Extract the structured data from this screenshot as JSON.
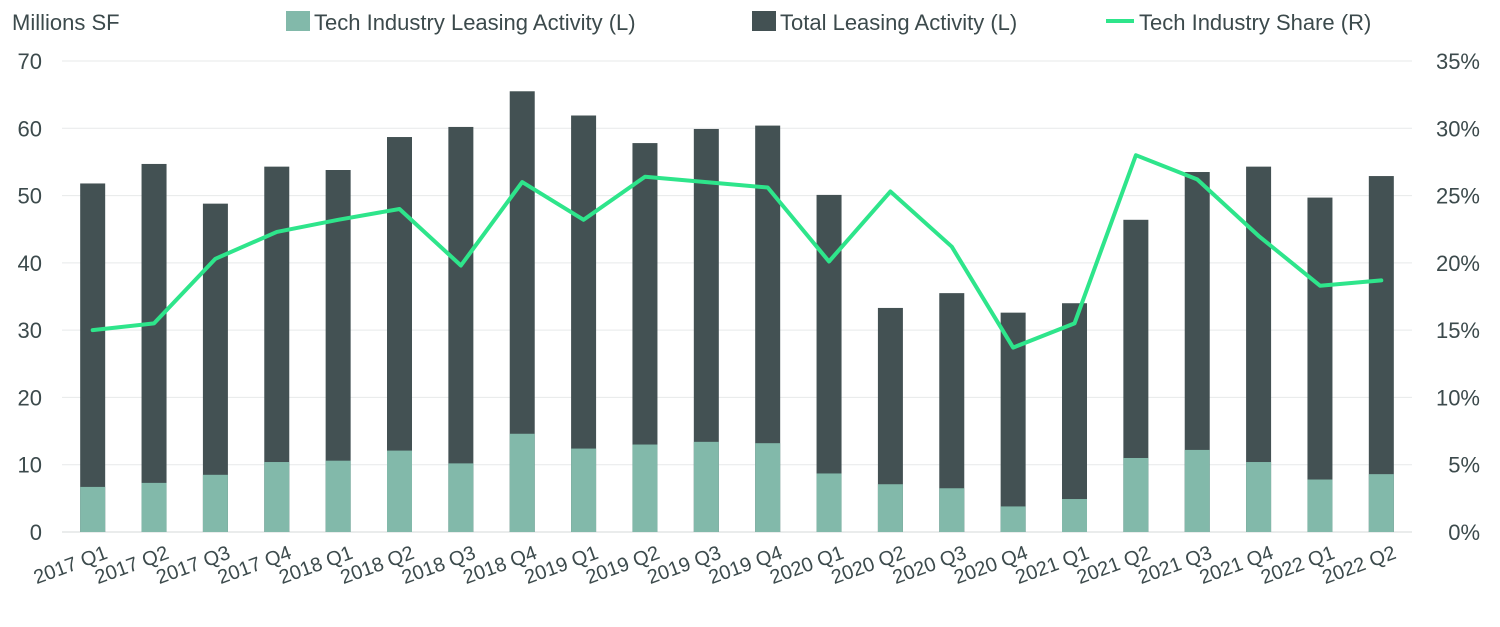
{
  "chart_data": {
    "type": "bar",
    "left_axis_title": "Millions SF",
    "categories": [
      "2017 Q1",
      "2017 Q2",
      "2017 Q3",
      "2017 Q4",
      "2018 Q1",
      "2018 Q2",
      "2018 Q3",
      "2018 Q4",
      "2019 Q1",
      "2019 Q2",
      "2019 Q3",
      "2019 Q4",
      "2020 Q1",
      "2020 Q2",
      "2020 Q3",
      "2020 Q4",
      "2021 Q1",
      "2021 Q2",
      "2021 Q3",
      "2021 Q4",
      "2022 Q1",
      "2022 Q2"
    ],
    "series": [
      {
        "name": "Tech Industry Leasing Activity (L)",
        "axis": "left",
        "kind": "bar",
        "color": "#82b9aa",
        "values": [
          6.7,
          7.3,
          8.5,
          10.4,
          10.6,
          12.1,
          10.2,
          14.6,
          12.4,
          13.0,
          13.4,
          13.2,
          8.7,
          7.1,
          6.5,
          3.8,
          4.9,
          11.0,
          12.2,
          10.4,
          7.8,
          8.6
        ]
      },
      {
        "name": "Total Leasing Activity (L)",
        "axis": "left",
        "kind": "bar",
        "color": "#435153",
        "values": [
          51.8,
          54.7,
          48.8,
          54.3,
          53.8,
          58.7,
          60.2,
          65.5,
          61.9,
          57.8,
          59.9,
          60.4,
          50.1,
          33.3,
          35.5,
          32.6,
          34.0,
          46.4,
          53.5,
          54.3,
          49.7,
          52.9
        ]
      },
      {
        "name": "Tech Industry Share (R)",
        "axis": "right",
        "kind": "line",
        "color": "#2ee58b",
        "values": [
          15.0,
          15.5,
          20.3,
          22.3,
          23.2,
          24.0,
          19.8,
          26.0,
          23.2,
          26.4,
          26.0,
          25.6,
          20.1,
          25.3,
          21.2,
          13.7,
          15.5,
          28.0,
          26.2,
          22.0,
          18.3,
          18.7
        ]
      }
    ],
    "ylim_left": [
      0,
      70
    ],
    "yticks_left": [
      0,
      10,
      20,
      30,
      40,
      50,
      60,
      70
    ],
    "ylim_right": [
      0,
      35
    ],
    "yticks_right": [
      "0%",
      "5%",
      "10%",
      "15%",
      "20%",
      "25%",
      "30%",
      "35%"
    ],
    "grid": true,
    "legend_position": "top"
  }
}
